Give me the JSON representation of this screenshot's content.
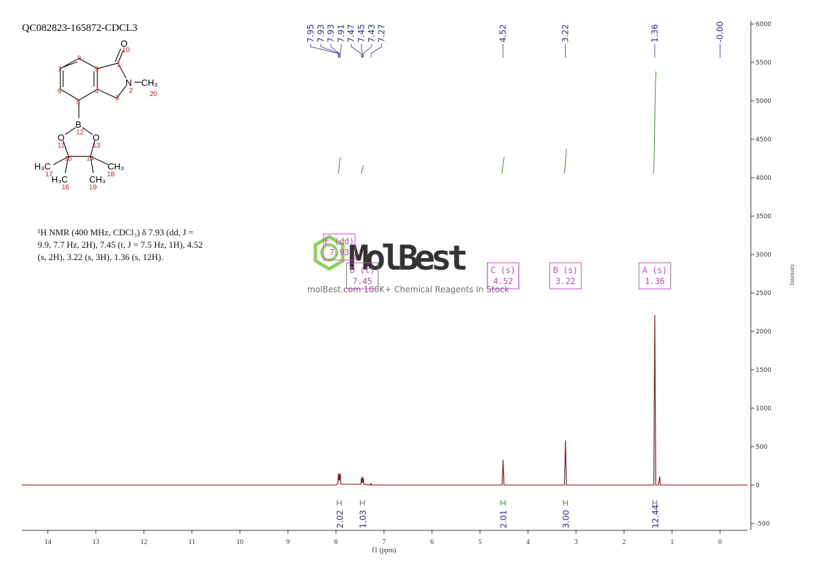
{
  "chart_data": {
    "type": "nmr",
    "title": "QC082823-165872-CDCL3",
    "description": "¹H NMR (400 MHz, CDCl₃) δ 7.93 (dd, J = 9.9, 7.7 Hz, 2H), 7.45 (t, J = 7.5 Hz, 1H), 4.52 (s, 2H), 3.22 (s, 3H), 1.36 (s, 12H).",
    "x_label": "f1 (ppm)",
    "y_label": "Intensity",
    "xlim": [
      14.54,
      -0.57
    ],
    "ylim": [
      -590,
      6045
    ],
    "xticks": [
      14,
      13,
      12,
      11,
      10,
      9,
      8,
      7,
      6,
      5,
      4,
      3,
      2,
      1,
      0
    ],
    "yticks": [
      -500,
      0,
      500,
      1000,
      1500,
      2000,
      2500,
      3000,
      3500,
      4000,
      4500,
      5000,
      5500,
      6000
    ],
    "series": [
      {
        "name": "spectrum",
        "color": "#8b1a1a",
        "x": [
          14.54,
          8.0,
          7.96,
          7.95,
          7.94,
          7.93,
          7.92,
          7.91,
          7.9,
          7.48,
          7.47,
          7.46,
          7.45,
          7.44,
          7.43,
          7.42,
          7.28,
          7.27,
          7.26,
          4.54,
          4.52,
          4.5,
          3.24,
          3.22,
          3.2,
          1.38,
          1.36,
          1.34,
          1.28,
          1.26,
          1.24,
          0.02,
          0.0,
          -0.02,
          -0.57
        ],
        "values": [
          0,
          0,
          20,
          150,
          60,
          140,
          60,
          150,
          10,
          10,
          90,
          30,
          110,
          30,
          90,
          10,
          0,
          25,
          0,
          0,
          330,
          0,
          0,
          580,
          0,
          0,
          2210,
          0,
          0,
          110,
          0,
          0,
          5,
          0,
          0
        ]
      }
    ],
    "peak_labels": [
      7.95,
      7.93,
      7.93,
      7.91,
      7.47,
      7.45,
      7.43,
      7.27,
      4.52,
      3.22,
      1.36,
      {
        "value": 0,
        "label": "-0.00"
      }
    ],
    "multiplets": [
      {
        "label": "E (dd)",
        "shift": 7.93,
        "integral": 2.02
      },
      {
        "label": "D (t)",
        "shift": 7.45,
        "integral": 1.03
      },
      {
        "label": "C (s)",
        "shift": 4.52,
        "integral": 2.01
      },
      {
        "label": "B (s)",
        "shift": 3.22,
        "integral": {
          "value": 3,
          "label": "3.00"
        }
      },
      {
        "label": "A (s)",
        "shift": 1.36,
        "integral": 12.44
      }
    ],
    "integral_color": "#3a8f2a",
    "label_color": "#2a2f8a",
    "box_color": "#cc44cc",
    "watermark": {
      "brand": "MolBest",
      "tagline": "molBest.com 180K+ Chemical Reagents In Stock"
    },
    "structure": {
      "atoms": [
        "O",
        "N",
        "CH₃",
        "B",
        "O",
        "O",
        "H₃C",
        "H₃C",
        "CH₃",
        "CH₃"
      ],
      "numbers": [
        "10",
        "8",
        "9",
        "1",
        "2",
        "20",
        "7",
        "4",
        "3",
        "6",
        "5",
        "12",
        "11",
        "13",
        "15",
        "14",
        "17",
        "16",
        "18",
        "19"
      ]
    }
  }
}
